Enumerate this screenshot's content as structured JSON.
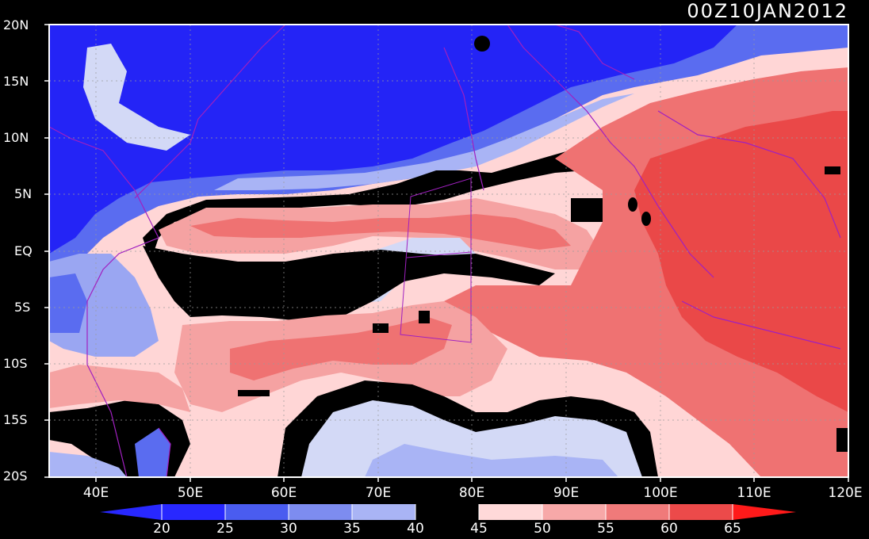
{
  "timestamp": "00Z10JAN2012",
  "lat_labels": [
    "20N",
    "15N",
    "10N",
    "5N",
    "EQ",
    "5S",
    "10S",
    "15S",
    "20S"
  ],
  "lon_labels": [
    "40E",
    "50E",
    "60E",
    "70E",
    "80E",
    "90E",
    "100E",
    "110E",
    "120E"
  ],
  "colorbar": {
    "labels": [
      "20",
      "25",
      "30",
      "35",
      "40",
      "45",
      "50",
      "55",
      "60",
      "65"
    ],
    "colors": [
      "#2828ff",
      "#2828ff",
      "#4a5cf0",
      "#7d8cf0",
      "#a9b4f5",
      "#d9dff8",
      "#000000",
      "#ffd9d9",
      "#f7a8a8",
      "#f07a7a",
      "#ec4a4a",
      "#ff1a1a"
    ]
  },
  "colors": {
    "blue_dark": "#2424f6",
    "blue_mid": "#5a6cf0",
    "blue_light": "#9aa6f2",
    "blue_pale": "#d3d9f6",
    "black": "#000000",
    "red_pale": "#ffd6d6",
    "red_light": "#f5a2a2",
    "red_mid": "#ef7272",
    "red_dark": "#ea4848",
    "border": "#a020c0"
  }
}
